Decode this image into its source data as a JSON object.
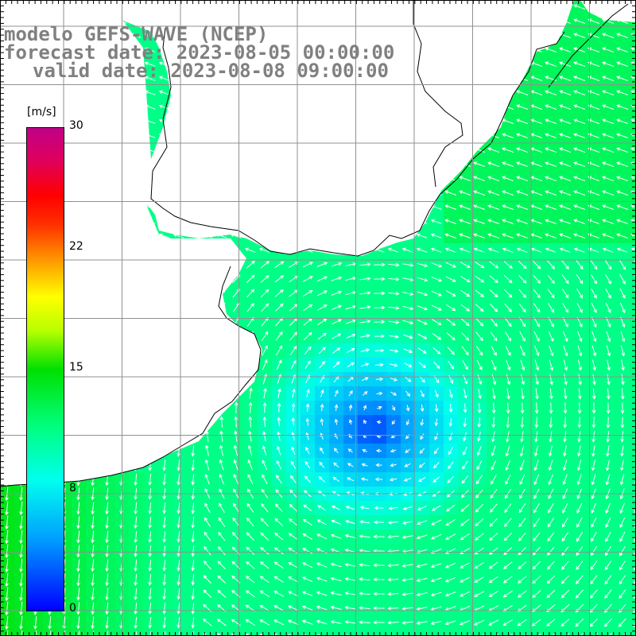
{
  "title": {
    "line1": "modelo GEFS-WAVE (NCEP)",
    "line2": "forecast date: 2023-08-05 00:00:00",
    "line3": "valid date: 2023-08-08 09:00:00"
  },
  "colorbar": {
    "unit": "[m/s]",
    "min": 0,
    "max": 30,
    "ticks": [
      "30",
      "22",
      "15",
      "8",
      "0"
    ],
    "colors": [
      "#0000ff",
      "#00a0ff",
      "#00ffee",
      "#00ff80",
      "#00e000",
      "#b8ff00",
      "#ffff00",
      "#ffa000",
      "#ff3000",
      "#ff0000",
      "#e0005a",
      "#c00088"
    ]
  },
  "map": {
    "land_color": "#ffffff",
    "coastline_color": "#000000",
    "grid_color": "#909090",
    "vector_color": "#ffffff"
  }
}
